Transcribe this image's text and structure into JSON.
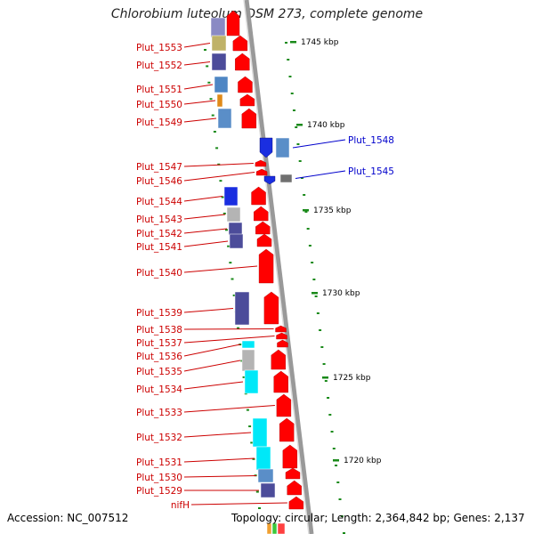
{
  "title": "Chlorobium luteolum DSM 273, complete genome",
  "accession": "Accession: NC_007512",
  "topology": "Topology: circular; Length: 2,364,842 bp; Genes: 2,137",
  "colors": {
    "minus_label": "#cc0000",
    "plus_label": "#0000cc",
    "arrow": "#ff0000",
    "tick": "#1a8a1a",
    "backbone": "#999999"
  },
  "scale": {
    "labels": [
      "1745 kbp",
      "1740 kbp",
      "1735 kbp",
      "1730 kbp",
      "1725 kbp",
      "1720 kbp"
    ]
  },
  "genes_minus": [
    "Plut_1553",
    "Plut_1552",
    "Plut_1551",
    "Plut_1550",
    "Plut_1549",
    "Plut_1547",
    "Plut_1546",
    "Plut_1544",
    "Plut_1543",
    "Plut_1542",
    "Plut_1541",
    "Plut_1540",
    "Plut_1539",
    "Plut_1538",
    "Plut_1537",
    "Plut_1536",
    "Plut_1535",
    "Plut_1534",
    "Plut_1533",
    "Plut_1532",
    "Plut_1531",
    "Plut_1530",
    "Plut_1529",
    "nifH"
  ],
  "genes_plus": [
    "Plut_1548",
    "Plut_1545"
  ]
}
